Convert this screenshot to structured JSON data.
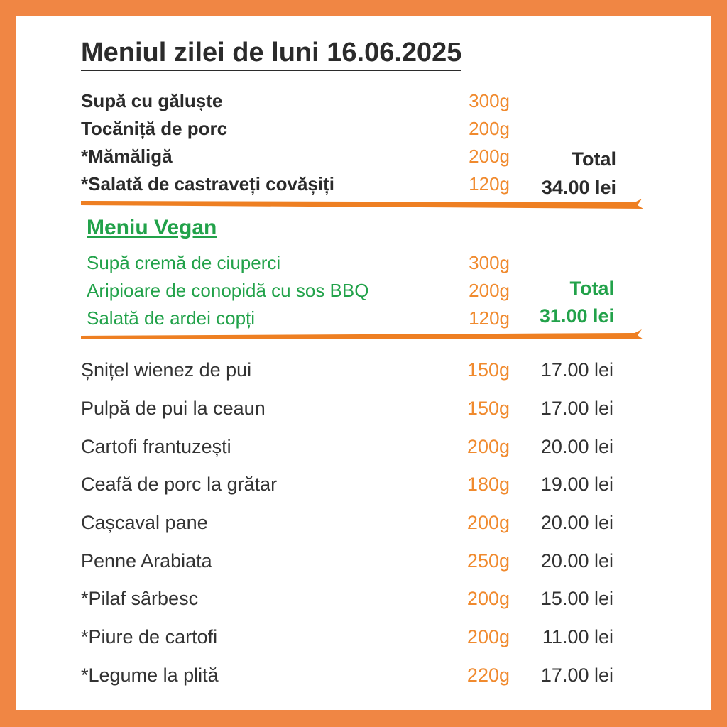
{
  "title": "Meniul zilei de luni 16.06.2025",
  "daily_menu": {
    "items": [
      {
        "name": "Supă cu găluște",
        "weight": "300g"
      },
      {
        "name": "Tocăniță de porc",
        "weight": "200g"
      },
      {
        "name": "*Mămăligă",
        "weight": "200g"
      },
      {
        "name": "*Salată de castraveți covășiți",
        "weight": "120g"
      }
    ],
    "total_label": "Total",
    "total_value": "34.00 lei"
  },
  "vegan_menu": {
    "heading": "Meniu Vegan",
    "items": [
      {
        "name": "Supă cremă de ciuperci",
        "weight": "300g"
      },
      {
        "name": "Aripioare de conopidă cu sos BBQ",
        "weight": "200g"
      },
      {
        "name": "Salată de ardei copți",
        "weight": "120g"
      }
    ],
    "total_label": "Total",
    "total_value": "31.00 lei"
  },
  "extras": [
    {
      "name": "Șnițel wienez de pui",
      "weight": "150g",
      "price": "17.00 lei"
    },
    {
      "name": "Pulpă de pui la ceaun",
      "weight": "150g",
      "price": "17.00 lei"
    },
    {
      "name": "Cartofi frantuzești",
      "weight": "200g",
      "price": "20.00 lei"
    },
    {
      "name": "Ceafă de porc la grătar",
      "weight": "180g",
      "price": "19.00 lei"
    },
    {
      "name": "Cașcaval pane",
      "weight": "200g",
      "price": "20.00 lei"
    },
    {
      "name": "Penne Arabiata",
      "weight": "250g",
      "price": "20.00 lei"
    },
    {
      "name": "*Pilaf sârbesc",
      "weight": "200g",
      "price": "15.00 lei"
    },
    {
      "name": "*Piure de cartofi",
      "weight": "200g",
      "price": "11.00 lei"
    },
    {
      "name": "*Legume la plită",
      "weight": "220g",
      "price": "17.00 lei"
    }
  ],
  "colors": {
    "frame": "#F08644",
    "weight": "#F08A2E",
    "vegan": "#22A24A",
    "divider": "#EE7F22",
    "text": "#2b2b2b"
  }
}
